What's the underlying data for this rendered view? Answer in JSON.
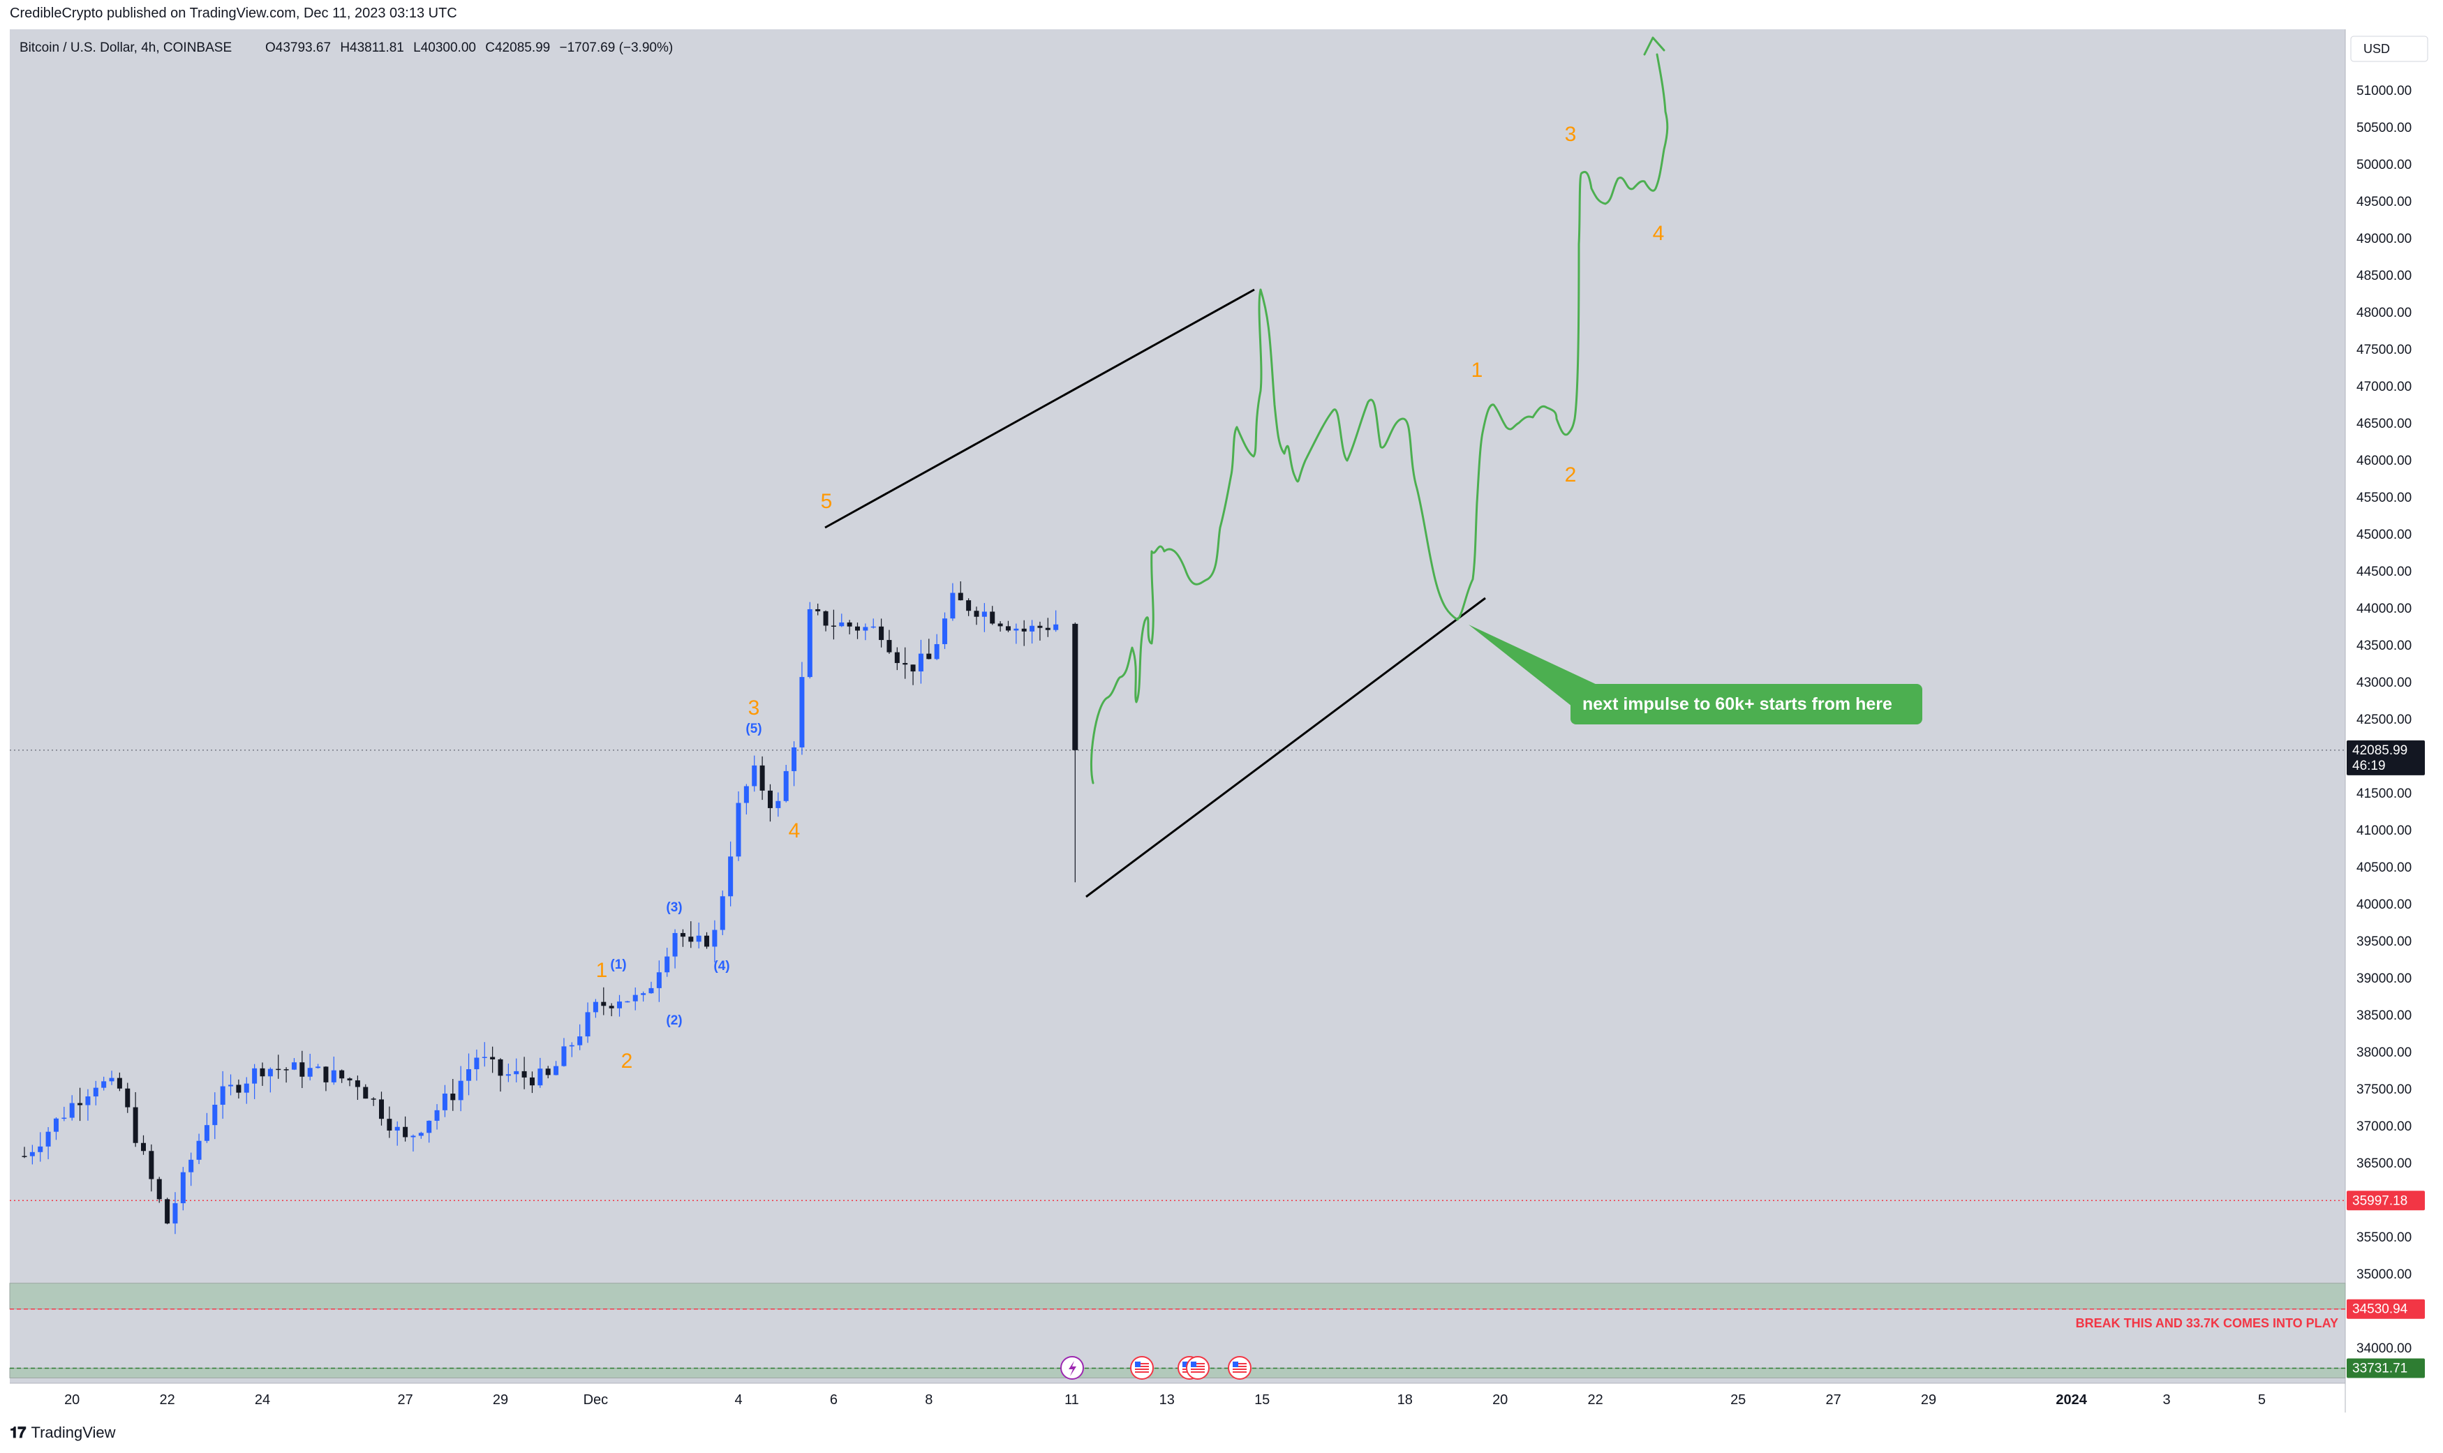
{
  "header": {
    "published_line": "CredibleCrypto published on TradingView.com, Dec 11, 2023 03:13 UTC"
  },
  "symbol_info": {
    "name": "Bitcoin / U.S. Dollar, 4h, COINBASE",
    "open": "O43793.67",
    "high": "H43811.81",
    "low": "L40300.00",
    "close": "C42085.99",
    "change": "−1707.69 (−3.90%)"
  },
  "currency_button": "USD",
  "footer": {
    "brand": "TradingView"
  },
  "colors": {
    "background": "#d1d4dc",
    "bull": "#2962ff",
    "bear": "#131722",
    "projection": "#4caf50",
    "wave_orange": "#ff9800",
    "wave_blue": "#2962ff",
    "support_red": "#f23645",
    "zone_green": "#b2c9bb",
    "callout_green": "#4caf50"
  },
  "chart_data": {
    "type": "candlestick",
    "timeframe": "4h",
    "ylim": [
      33600,
      51600
    ],
    "x_tick_labels": [
      "20",
      "22",
      "24",
      "27",
      "29",
      "Dec",
      "4",
      "6",
      "8",
      "11",
      "13",
      "15",
      "18",
      "20",
      "22",
      "25",
      "27",
      "29",
      "2024",
      "3",
      "5"
    ],
    "y_tick_labels": [
      "51000.00",
      "50500.00",
      "50000.00",
      "49500.00",
      "49000.00",
      "48500.00",
      "48000.00",
      "47500.00",
      "47000.00",
      "46500.00",
      "46000.00",
      "45500.00",
      "45000.00",
      "44500.00",
      "44000.00",
      "43500.00",
      "43000.00",
      "42500.00",
      "42000.00",
      "41500.00",
      "41000.00",
      "40500.00",
      "40000.00",
      "39500.00",
      "39000.00",
      "38500.00",
      "38000.00",
      "37500.00",
      "37000.00",
      "36500.00",
      "36000.00",
      "35500.00",
      "35000.00",
      "34500.00",
      "34000.00"
    ],
    "candle_anchors": [
      [
        "Nov 19",
        36600
      ],
      [
        "Nov 20",
        37300
      ],
      [
        "Nov 20.5",
        37600
      ],
      [
        "Nov 21",
        37500
      ],
      [
        "Nov 21.7",
        36200
      ],
      [
        "Nov 22",
        35700
      ],
      [
        "Nov 22.5",
        36550
      ],
      [
        "Nov 23",
        37350
      ],
      [
        "Nov 24",
        37800
      ],
      [
        "Nov 25",
        37750
      ],
      [
        "Nov 26",
        37600
      ],
      [
        "Nov 27",
        36800
      ],
      [
        "Nov 28",
        37450
      ],
      [
        "Nov 28.5",
        37950
      ],
      [
        "Nov 29",
        37700
      ],
      [
        "Nov 30",
        37650
      ],
      [
        "Dec 1",
        38600
      ],
      [
        "Dec 1.5",
        38750
      ],
      [
        "Dec 2",
        38700
      ],
      [
        "Dec 2.7",
        39700
      ],
      [
        "Dec 3",
        39400
      ],
      [
        "Dec 3.5",
        39600
      ],
      [
        "Dec 4",
        41300
      ],
      [
        "Dec 4.3",
        41800
      ],
      [
        "Dec 4.8",
        41250
      ],
      [
        "Dec 5.2",
        42300
      ],
      [
        "Dec 5.5",
        43900
      ],
      [
        "Dec 6",
        43800
      ],
      [
        "Dec 7",
        43700
      ],
      [
        "Dec 7.5",
        43200
      ],
      [
        "Dec 8",
        43300
      ],
      [
        "Dec 8.5",
        44100
      ],
      [
        "Dec 9",
        44000
      ],
      [
        "Dec 10",
        43700
      ],
      [
        "Dec 10.7",
        43800
      ]
    ],
    "last_candle": {
      "open": 43793.67,
      "high": 43811.81,
      "low": 40300.0,
      "close": 42085.99
    },
    "price_labels": [
      {
        "text": "42085.99",
        "sub": "46:19",
        "value": 42085.99,
        "style": "dark"
      },
      {
        "text": "35997.18",
        "value": 35997.18,
        "style": "red"
      },
      {
        "text": "34530.94",
        "value": 34530.94,
        "style": "red"
      },
      {
        "text": "33731.71",
        "value": 33731.71,
        "style": "green"
      }
    ],
    "horizontal_lines": [
      {
        "value": 42085.99,
        "style": "dotted-gray"
      },
      {
        "value": 35997.18,
        "style": "dotted-red"
      },
      {
        "value": 34530.94,
        "style": "dashed-red"
      },
      {
        "value": 33731.71,
        "style": "dashed-green"
      }
    ],
    "zones": [
      {
        "from": 34530.94,
        "to": 34880,
        "color": "green"
      },
      {
        "from": 33600,
        "to": 33731.71,
        "color": "green"
      }
    ],
    "annotations": {
      "callout": "next impulse to 60k+ starts from here",
      "warning": "BREAK THIS AND 33.7K COMES INTO PLAY"
    },
    "wave_labels": [
      {
        "text": "5",
        "color": "orange",
        "x": "Dec 5.8",
        "y": 45500
      },
      {
        "text": "3",
        "color": "orange",
        "x": "Dec 4.2",
        "y": 42550
      },
      {
        "text": "(5)",
        "color": "blue",
        "x": "Dec 4.2",
        "y": 42300
      },
      {
        "text": "4",
        "color": "orange",
        "x": "Dec 5.1",
        "y": 40900
      },
      {
        "text": "(3)",
        "color": "blue",
        "x": "Dec 2.7",
        "y": 40000
      },
      {
        "text": "1",
        "color": "orange",
        "x": "Nov 30.1",
        "y": 39100
      },
      {
        "text": "(1)",
        "color": "blue",
        "x": "Nov 30.5",
        "y": 39150
      },
      {
        "text": "(4)",
        "color": "blue",
        "x": "Dec 3.2",
        "y": 39150
      },
      {
        "text": "(2)",
        "color": "blue",
        "x": "Dec 2.2",
        "y": 38450
      },
      {
        "text": "2",
        "color": "orange",
        "x": "Nov 30.7",
        "y": 37850
      },
      {
        "text": "1",
        "color": "orange",
        "x": "Dec 19.5",
        "y": 47200
      },
      {
        "text": "2",
        "color": "orange",
        "x": "Dec 21.5",
        "y": 45800
      },
      {
        "text": "3",
        "color": "orange",
        "x": "Dec 21.5",
        "y": 50300
      },
      {
        "text": "4",
        "color": "orange",
        "x": "Dec 23.3",
        "y": 49000
      }
    ],
    "event_icons": [
      "flash-icon",
      "us-flag-icon",
      "us-flag-icon",
      "us-flag-icon",
      "us-flag-icon"
    ]
  }
}
